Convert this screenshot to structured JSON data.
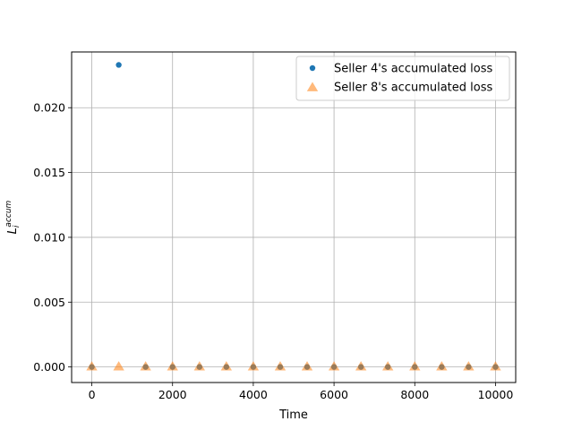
{
  "chart_data": {
    "type": "scatter",
    "title": "",
    "xlabel": "Time",
    "ylabel": {
      "base": "L",
      "sub": "i",
      "sup": "accum"
    },
    "xlim": [
      -500,
      10500
    ],
    "ylim": [
      -0.0012,
      0.0243
    ],
    "xticks": [
      0,
      2000,
      4000,
      6000,
      8000,
      10000
    ],
    "xtick_labels": [
      "0",
      "2000",
      "4000",
      "6000",
      "8000",
      "10000"
    ],
    "yticks": [
      0.0,
      0.005,
      0.01,
      0.015,
      0.02
    ],
    "ytick_labels": [
      "0.000",
      "0.005",
      "0.010",
      "0.015",
      "0.020"
    ],
    "grid": true,
    "legend_position": "top-right",
    "series": [
      {
        "name": "Seller 4's accumulated loss",
        "marker": "circle",
        "color": "#1f77b4",
        "x": [
          0,
          667,
          1333,
          2000,
          2667,
          3333,
          4000,
          4667,
          5333,
          6000,
          6667,
          7333,
          8000,
          8667,
          9333,
          10000
        ],
        "y": [
          0.0,
          0.0233,
          0.0,
          0.0,
          0.0,
          0.0,
          0.0,
          0.0,
          0.0,
          0.0,
          0.0,
          0.0,
          0.0,
          0.0,
          0.0,
          0.0
        ]
      },
      {
        "name": "Seller 8's accumulated loss",
        "marker": "triangle",
        "color": "#ff7f0e",
        "x": [
          0,
          667,
          1333,
          2000,
          2667,
          3333,
          4000,
          4667,
          5333,
          6000,
          6667,
          7333,
          8000,
          8667,
          9333,
          10000
        ],
        "y": [
          0.0,
          0.0,
          0.0,
          0.0,
          0.0,
          0.0,
          0.0,
          0.0,
          0.0,
          0.0,
          0.0,
          0.0,
          0.0,
          0.0,
          0.0,
          0.0
        ]
      }
    ]
  }
}
